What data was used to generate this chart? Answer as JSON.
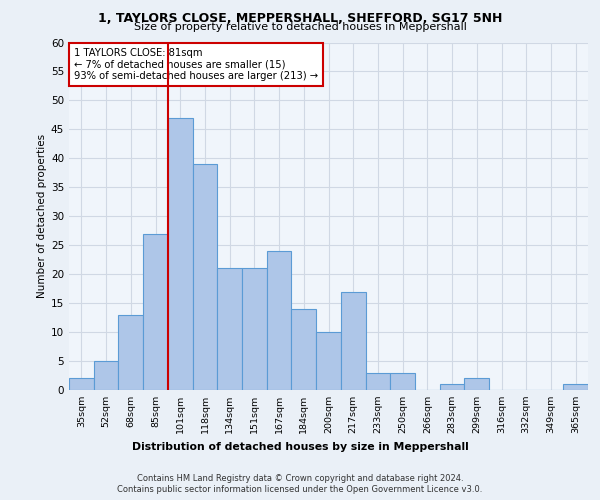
{
  "title1": "1, TAYLORS CLOSE, MEPPERSHALL, SHEFFORD, SG17 5NH",
  "title2": "Size of property relative to detached houses in Meppershall",
  "xlabel": "Distribution of detached houses by size in Meppershall",
  "ylabel": "Number of detached properties",
  "bin_labels": [
    "35sqm",
    "52sqm",
    "68sqm",
    "85sqm",
    "101sqm",
    "118sqm",
    "134sqm",
    "151sqm",
    "167sqm",
    "184sqm",
    "200sqm",
    "217sqm",
    "233sqm",
    "250sqm",
    "266sqm",
    "283sqm",
    "299sqm",
    "316sqm",
    "332sqm",
    "349sqm",
    "365sqm"
  ],
  "bar_values": [
    2,
    5,
    13,
    27,
    47,
    39,
    21,
    21,
    24,
    14,
    10,
    17,
    3,
    3,
    0,
    1,
    2,
    0,
    0,
    0,
    1
  ],
  "bar_color": "#aec6e8",
  "bar_edge_color": "#5b9bd5",
  "vline_x_index": 3,
  "vline_color": "#cc0000",
  "annotation_text": "1 TAYLORS CLOSE: 81sqm\n← 7% of detached houses are smaller (15)\n93% of semi-detached houses are larger (213) →",
  "annotation_box_color": "#ffffff",
  "annotation_box_edge": "#cc0000",
  "ylim": [
    0,
    60
  ],
  "yticks": [
    0,
    5,
    10,
    15,
    20,
    25,
    30,
    35,
    40,
    45,
    50,
    55,
    60
  ],
  "footer1": "Contains HM Land Registry data © Crown copyright and database right 2024.",
  "footer2": "Contains public sector information licensed under the Open Government Licence v3.0.",
  "bg_color": "#eaf0f7",
  "plot_bg_color": "#f0f5fb",
  "grid_color": "#d0d8e4"
}
